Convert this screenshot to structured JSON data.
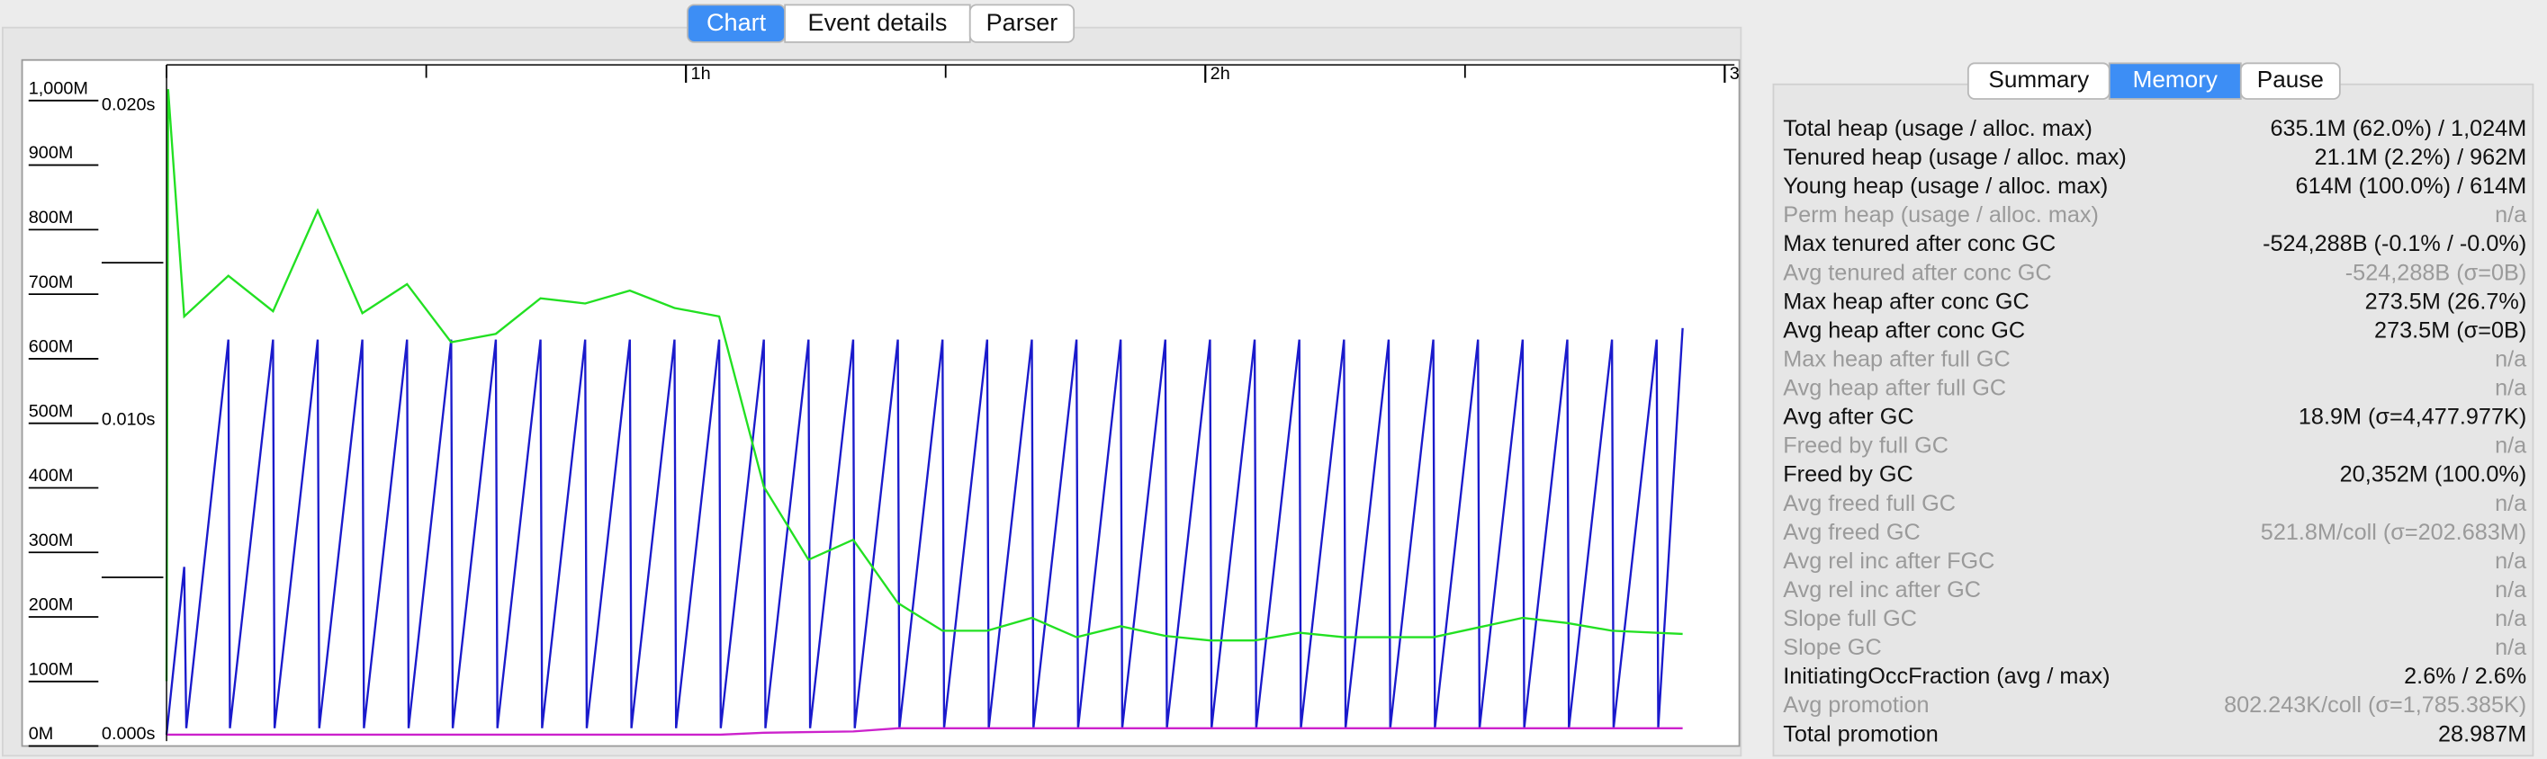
{
  "tabs": {
    "items": [
      "Chart",
      "Event details",
      "Parser"
    ],
    "active": 0
  },
  "chart_data": {
    "type": "line",
    "xticks": [
      {
        "value": 1,
        "label": "1h"
      },
      {
        "value": 2,
        "label": "2h"
      },
      {
        "value": 3,
        "label": "3"
      }
    ],
    "xminor": [
      0,
      0.5,
      1.5,
      2.5
    ],
    "xlim": [
      0,
      3
    ],
    "ylim": [
      0,
      1000
    ],
    "yticks": [
      {
        "value": 1000,
        "label": "1,000M"
      },
      {
        "value": 900,
        "label": "900M"
      },
      {
        "value": 800,
        "label": "800M"
      },
      {
        "value": 700,
        "label": "700M"
      },
      {
        "value": 600,
        "label": "600M"
      },
      {
        "value": 500,
        "label": "500M"
      },
      {
        "value": 400,
        "label": "400M"
      },
      {
        "value": 300,
        "label": "300M"
      },
      {
        "value": 200,
        "label": "200M"
      },
      {
        "value": 100,
        "label": "100M"
      },
      {
        "value": 0,
        "label": "0M"
      }
    ],
    "y2lim": [
      0,
      0.02
    ],
    "y2ticks": [
      {
        "value": 0.02,
        "label": "0.020s"
      },
      {
        "value": 0.01,
        "label": "0.010s"
      },
      {
        "value": 0,
        "label": "0.000s"
      }
    ],
    "y2minor": [
      0.015,
      0.005
    ],
    "series": [
      {
        "color": "#1a1acc",
        "x": [
          0,
          0.034,
          0.038,
          0.119,
          0.122,
          0.205,
          0.208,
          0.291,
          0.294,
          0.377,
          0.38,
          0.463,
          0.466,
          0.548,
          0.551,
          0.634,
          0.637,
          0.72,
          0.723,
          0.806,
          0.809,
          0.892,
          0.895,
          0.978,
          0.981,
          1.064,
          1.067,
          1.15,
          1.153,
          1.236,
          1.239,
          1.322,
          1.325,
          1.408,
          1.411,
          1.494,
          1.497,
          1.58,
          1.583,
          1.666,
          1.669,
          1.752,
          1.755,
          1.837,
          1.84,
          1.923,
          1.926,
          2.009,
          2.012,
          2.095,
          2.098,
          2.181,
          2.184,
          2.267,
          2.27,
          2.353,
          2.356,
          2.439,
          2.442,
          2.525,
          2.528,
          2.611,
          2.614,
          2.697,
          2.7,
          2.783,
          2.786,
          2.869,
          2.872,
          2.919
        ],
        "values": [
          0,
          260,
          10,
          612,
          10,
          612,
          10,
          612,
          10,
          612,
          10,
          612,
          10,
          612,
          10,
          612,
          10,
          612,
          10,
          612,
          10,
          612,
          10,
          612,
          10,
          612,
          10,
          612,
          10,
          612,
          10,
          612,
          10,
          612,
          10,
          612,
          10,
          612,
          10,
          612,
          10,
          612,
          10,
          612,
          10,
          612,
          10,
          612,
          10,
          612,
          10,
          612,
          10,
          612,
          10,
          612,
          10,
          612,
          10,
          612,
          10,
          612,
          10,
          612,
          10,
          612,
          10,
          612,
          10,
          630
        ]
      },
      {
        "color": "#22e022",
        "x": [
          0,
          0.003,
          0.034,
          0.119,
          0.205,
          0.291,
          0.377,
          0.463,
          0.548,
          0.634,
          0.72,
          0.806,
          0.892,
          0.978,
          1.064,
          1.15,
          1.236,
          1.322,
          1.408,
          1.494,
          1.58,
          1.666,
          1.752,
          1.837,
          1.923,
          2.009,
          2.095,
          2.181,
          2.267,
          2.353,
          2.439,
          2.525,
          2.611,
          2.697,
          2.783,
          2.919
        ],
        "values": [
          83,
          1000,
          648,
          711,
          656,
          812,
          653,
          698,
          608,
          621,
          676,
          668,
          688,
          661,
          648,
          384,
          271,
          302,
          204,
          161,
          161,
          181,
          151,
          168,
          153,
          146,
          146,
          158,
          151,
          151,
          151,
          166,
          181,
          173,
          161,
          156
        ]
      },
      {
        "color": "#cc22cc",
        "x": [
          0,
          1.066,
          1.15,
          1.322,
          1.408,
          2.919
        ],
        "values": [
          0,
          0,
          3,
          5,
          10,
          10
        ]
      }
    ]
  },
  "summary": {
    "tabs": [
      "Summary",
      "Memory",
      "Pause"
    ],
    "active": 1,
    "rows": [
      {
        "label": "Total heap (usage / alloc. max)",
        "value": "635.1M (62.0%) / 1,024M",
        "muted": false
      },
      {
        "label": "Tenured heap (usage / alloc. max)",
        "value": "21.1M (2.2%) / 962M",
        "muted": false
      },
      {
        "label": "Young heap (usage / alloc. max)",
        "value": "614M (100.0%) / 614M",
        "muted": false
      },
      {
        "label": "Perm heap (usage / alloc. max)",
        "value": "n/a",
        "muted": true
      },
      {
        "label": "Max tenured after conc GC",
        "value": "-524,288B (-0.1% / -0.0%)",
        "muted": false
      },
      {
        "label": "Avg tenured after conc GC",
        "value": "-524,288B (σ=0B)",
        "muted": true
      },
      {
        "label": "Max heap after conc GC",
        "value": "273.5M (26.7%)",
        "muted": false
      },
      {
        "label": "Avg heap after conc GC",
        "value": "273.5M (σ=0B)",
        "muted": false
      },
      {
        "label": "Max heap after full GC",
        "value": "n/a",
        "muted": true
      },
      {
        "label": "Avg heap after full GC",
        "value": "n/a",
        "muted": true
      },
      {
        "label": "Avg after GC",
        "value": "18.9M (σ=4,477.977K)",
        "muted": false
      },
      {
        "label": "Freed by full GC",
        "value": "n/a",
        "muted": true
      },
      {
        "label": "Freed by GC",
        "value": "20,352M (100.0%)",
        "muted": false
      },
      {
        "label": "Avg freed full GC",
        "value": "n/a",
        "muted": true
      },
      {
        "label": "Avg freed GC",
        "value": "521.8M/coll (σ=202.683M)",
        "muted": true
      },
      {
        "label": "Avg rel inc after FGC",
        "value": "n/a",
        "muted": true
      },
      {
        "label": "Avg rel inc after GC",
        "value": "n/a",
        "muted": true
      },
      {
        "label": "Slope full GC",
        "value": "n/a",
        "muted": true
      },
      {
        "label": "Slope GC",
        "value": "n/a",
        "muted": true
      },
      {
        "label": "InitiatingOccFraction (avg / max)",
        "value": "2.6% / 2.6%",
        "muted": false
      },
      {
        "label": "Avg promotion",
        "value": "802.243K/coll (σ=1,785.385K)",
        "muted": true
      },
      {
        "label": "Total promotion",
        "value": "28.987M",
        "muted": false
      }
    ]
  }
}
